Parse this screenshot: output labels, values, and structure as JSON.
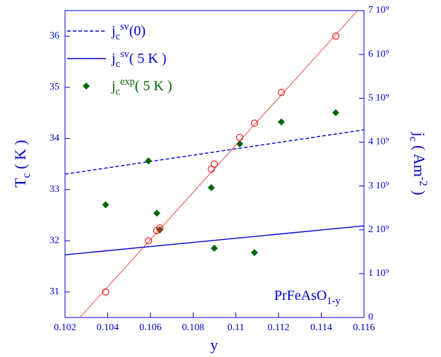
{
  "chart_data": {
    "type": "line",
    "x_label": "y",
    "y_label": [
      "T",
      "c",
      " ( K )"
    ],
    "y2_label": [
      "j",
      "c",
      " ( Am",
      "-2",
      " )"
    ],
    "annotation": [
      "PrFeAsO",
      "1-y"
    ],
    "xlim": [
      0.102,
      0.116
    ],
    "xticks": [
      0.102,
      0.104,
      0.106,
      0.108,
      0.11,
      0.112,
      0.114,
      0.116
    ],
    "ylim": [
      30.5,
      36.5
    ],
    "yticks": [
      31,
      32,
      33,
      34,
      35,
      36
    ],
    "y2lim": [
      0,
      7000000000
    ],
    "y2ticks": [
      0,
      {
        "value": 1000000000,
        "label": "1 10⁹"
      },
      {
        "value": 2000000000,
        "label": "2 10⁹"
      },
      {
        "value": 3000000000,
        "label": "3 10⁹"
      },
      {
        "value": 4000000000,
        "label": "4 10⁹"
      },
      {
        "value": 5000000000,
        "label": "5 10⁹"
      },
      {
        "value": 6000000000,
        "label": "6 10⁹"
      },
      {
        "value": 7000000000,
        "label": "7 10⁹"
      }
    ],
    "series": [
      {
        "name": [
          "j",
          "c",
          "sv",
          "(0)"
        ],
        "color": "#0000cc",
        "line_style": "dashed",
        "axis": "y2",
        "x": [
          0.102,
          0.116
        ],
        "values": [
          3270000000,
          4280000000
        ]
      },
      {
        "name": [
          "j",
          "c",
          "sv",
          "( 5 K )"
        ],
        "color": "#0000cc",
        "line_style": "solid",
        "axis": "y2",
        "x": [
          0.102,
          0.116
        ],
        "values": [
          1430000000,
          2090000000
        ]
      },
      {
        "name": [
          "j",
          "c",
          "exp",
          "( 5 K )"
        ],
        "color": "#006400",
        "marker": "diamond",
        "axis": "y2",
        "x": [
          0.1039,
          0.10591,
          0.1063,
          0.10644,
          0.10885,
          0.10899,
          0.11018,
          0.11087,
          0.11213,
          0.11468
        ],
        "values": [
          2570000000,
          3570000000,
          2380000000,
          2000000000,
          2960000000,
          1580000000,
          3960000000,
          1480000000,
          4460000000,
          4670000000
        ]
      },
      {
        "color": "#ee2222",
        "marker": "circle",
        "axis": "y",
        "x": [
          0.1039,
          0.10591,
          0.1063,
          0.10644,
          0.10885,
          0.10899,
          0.11018,
          0.11087,
          0.11213,
          0.11468
        ],
        "values": [
          31.0,
          32.0,
          32.2,
          32.25,
          33.4,
          33.5,
          34.02,
          34.3,
          34.9,
          36.0
        ]
      },
      {
        "color": "#ee2222",
        "line_style": "thin",
        "axis": "y",
        "x": [
          0.1027,
          0.1157
        ],
        "values": [
          30.5,
          36.5
        ]
      }
    ]
  }
}
